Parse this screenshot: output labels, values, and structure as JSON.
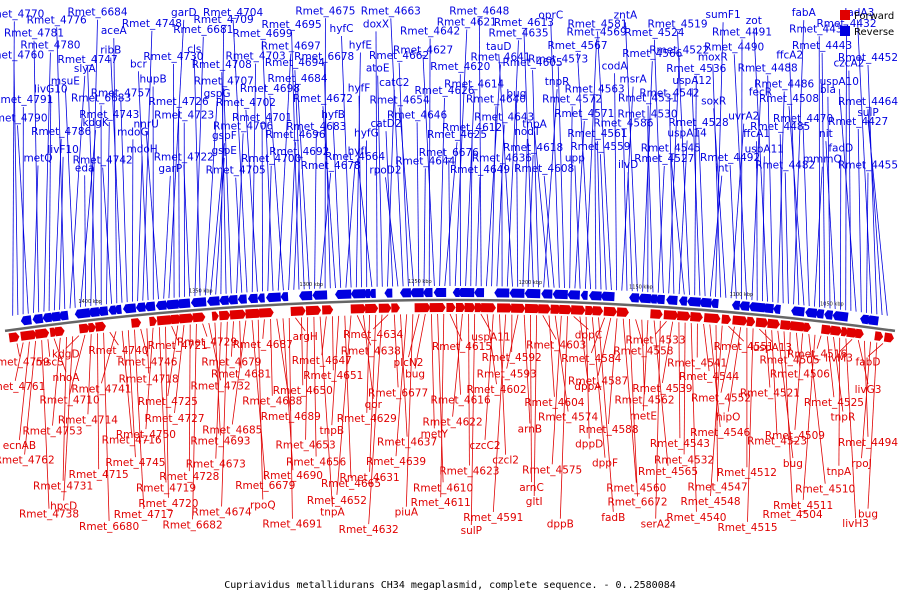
{
  "caption": "Cupriavidus metallidurans CH34 megaplasmid, complete sequence. - 0..2580084",
  "legend": [
    {
      "label": "Forward",
      "color": "#e00000"
    },
    {
      "label": "Reverse",
      "color": "#0000e0"
    }
  ],
  "colors": {
    "forward": "#e00000",
    "reverse": "#0000e0",
    "backbone": "#666666"
  },
  "ticks": [
    "1050 kbp",
    "1100 kbp",
    "1150 kbp",
    "1200 kbp",
    "1250 kbp",
    "1300 kbp",
    "1350 kbp",
    "1400 kbp"
  ],
  "labels_reverse": [
    "Rmet_4770",
    "Rmet_4760",
    "Rmet_4791",
    "Rmet_4790",
    "metQ",
    "Rmet_4781",
    "Rmet_4780",
    "livG10",
    "Rmet_4786",
    "livF10",
    "Rmet_4776",
    "slyA",
    "msuE",
    "kdgK",
    "eda",
    "Rmet_6684",
    "Rmet_4747",
    "Rmet_6683",
    "Rmet_4743",
    "Rmet_4742",
    "aceA",
    "ribB",
    "Rmet_4757",
    "mdoG",
    "mdoH",
    "Rmet_4748",
    "bcr",
    "hupB",
    "nnrU",
    "garP",
    "garD",
    "Rmet_4730",
    "Rmet_4726",
    "Rmet_4723",
    "Rmet_4722",
    "Rmet_6681",
    "cls",
    "gspG",
    "gspF",
    "gspE",
    "Rmet_4709",
    "Rmet_4708",
    "Rmet_4707",
    "Rmet_4706",
    "Rmet_4705",
    "Rmet_4704",
    "Rmet_4703",
    "Rmet_4702",
    "Rmet_4701",
    "Rmet_4700",
    "Rmet_4699",
    "Rmet_4697",
    "Rmet_4698",
    "Rmet_4696",
    "Rmet_4692",
    "Rmet_4695",
    "Rmet_4694",
    "Rmet_4684",
    "Rmet_4683",
    "Rmet_4678",
    "Rmet_4675",
    "Rmet_6678",
    "Rmet_4672",
    "hyfB",
    "Rmet_4664",
    "hyfC",
    "hyfE",
    "hyfF",
    "hyfG",
    "hyfI",
    "doxX",
    "atoE",
    "catC2",
    "catD2",
    "rpoD2",
    "Rmet_4663",
    "Rmet_4662",
    "Rmet_4654",
    "Rmet_4646",
    "Rmet_4644",
    "Rmet_4642",
    "Rmet_4627",
    "Rmet_4626",
    "Rmet_4625",
    "Rmet_6676",
    "Rmet_4621",
    "Rmet_4620",
    "Rmet_4614",
    "Rmet_4612",
    "Rmet_4649",
    "Rmet_4648",
    "Rmet_4641",
    "Rmet_4640",
    "Rmet_4643",
    "Rmet_4636",
    "Rmet_4635",
    "tauD",
    "bug",
    "nodT",
    "Rmet_4618",
    "Rmet_4613",
    "Rmet_4605",
    "tnpR",
    "tnpA",
    "Rmet_4608",
    "oprC",
    "Rmet_4573",
    "Rmet_4572",
    "Rmet_4571",
    "upp",
    "Rmet_4569",
    "Rmet_4567",
    "Rmet_4563",
    "Rmet_4561",
    "Rmet_4559",
    "Rmet_4581",
    "codA",
    "msrA",
    "Rmet_4586",
    "ilvD",
    "zntA",
    "Rmet_4566",
    "Rmet_4531",
    "Rmet_4530",
    "Rmet_4527",
    "Rmet_4524",
    "Rmet_4522",
    "Rmet_4542",
    "uspA14",
    "Rmet_4545",
    "Rmet_4519",
    "Rmet_4536",
    "uspA12",
    "Rmet_4528",
    "int",
    "sumF1",
    "moxR",
    "soxR",
    "uvrA2",
    "Rmet_4492",
    "Rmet_4491",
    "Rmet_4490",
    "fecR",
    "ffcA1",
    "uspA11",
    "zot",
    "Rmet_4488",
    "Rmet_4486",
    "Rmet_4485",
    "Rmet_4482",
    "fabA",
    "ffcA2",
    "Rmet_4508",
    "Rmet_4470",
    "mmmQ",
    "Rmet_4437",
    "Rmet_4443",
    "bla",
    "nit",
    "fadD",
    "Rmet_4432",
    "czcA2",
    "uspA10",
    "Rmet_4427",
    "Rmet_4455",
    "dadA3",
    "Rmet_4452",
    "Rmet_4464",
    "sulP"
  ],
  "labels_forward": [
    "Rmet_4759",
    "Rmet_4761",
    "ecnAB",
    "Rmet_4762",
    "Rmet_4738",
    "mscS",
    "nhoA",
    "Rmet_4753",
    "Rmet_4731",
    "hpcD",
    "kdgD",
    "Rmet_4710",
    "Rmet_4714",
    "Rmet_4715",
    "Rmet_6680",
    "Rmet_4740",
    "Rmet_4741",
    "Rmet_4716",
    "Rmet_4745",
    "Rmet_4717",
    "Rmet_4746",
    "Rmet_4718",
    "Rmet_4750",
    "Rmet_4719",
    "Rmet_4720",
    "Rmet_4721",
    "Rmet_4725",
    "Rmet_4727",
    "Rmet_4728",
    "Rmet_6682",
    "Rmet_4729",
    "Rmet_4732",
    "Rmet_4693",
    "Rmet_4673",
    "Rmet_4674",
    "Rmet_4679",
    "Rmet_4681",
    "Rmet_4685",
    "Rmet_6679",
    "rpoQ",
    "Rmet_4687",
    "Rmet_4688",
    "Rmet_4689",
    "Rmet_4690",
    "Rmet_4691",
    "argH",
    "Rmet_4650",
    "Rmet_4653",
    "Rmet_4656",
    "tnpA",
    "Rmet_4647",
    "Rmet_4651",
    "tnpB",
    "Rmet_4665",
    "Rmet_4652",
    "Rmet_4638",
    "qor",
    "Rmet_4629",
    "Rmet_4631",
    "Rmet_4632",
    "Rmet_4634",
    "Rmet_6677",
    "Rmet_4637",
    "Rmet_4639",
    "piuA",
    "plcN2",
    "bug",
    "metY",
    "Rmet_4610",
    "Rmet_4611",
    "Rmet_4615",
    "Rmet_4616",
    "Rmet_4622",
    "Rmet_4623",
    "sulP",
    "uspA11",
    "Rmet_4602",
    "czcC2",
    "czcl2",
    "Rmet_4591",
    "Rmet_4592",
    "Rmet_4593",
    "arnB",
    "arnC",
    "gltI",
    "Rmet_4603",
    "Rmet_4604",
    "Rmet_4574",
    "Rmet_4575",
    "dppB",
    "dppC",
    "dppA",
    "dppD",
    "dppF",
    "fadB",
    "Rmet_4584",
    "Rmet_4587",
    "Rmet_4588",
    "Rmet_4560",
    "Rmet_6672",
    "Rmet_4558",
    "Rmet_4562",
    "metE",
    "Rmet_4565",
    "serA2",
    "Rmet_4533",
    "Rmet_4539",
    "Rmet_4543",
    "Rmet_4532",
    "Rmet_4540",
    "Rmet_4541",
    "Rmet_4544",
    "Rmet_4546",
    "Rmet_4547",
    "Rmet_4548",
    "Rmet_4551",
    "Rmet_4552",
    "hipO",
    "Rmet_4512",
    "Rmet_4515",
    "uspA13",
    "Rmet_4521",
    "Rmet_4523",
    "bug",
    "Rmet_4504",
    "Rmet_4505",
    "Rmet_4506",
    "Rmet_4509",
    "Rmet_4510",
    "Rmet_4511",
    "Rmet_4516",
    "Rmet_4525",
    "tnpR",
    "tnpA",
    "livH3",
    "livM3",
    "livG3",
    "Rmet_4494",
    "rpoJ",
    "bug",
    "fabD"
  ]
}
